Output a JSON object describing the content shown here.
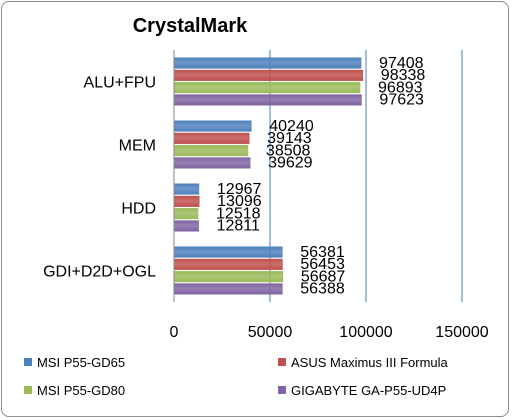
{
  "chart_data": {
    "type": "bar",
    "orientation": "horizontal",
    "title": "CrystalMark",
    "xlabel": "",
    "ylabel": "",
    "xlim": [
      0,
      150000
    ],
    "ticks": [
      "0",
      "50000",
      "100000",
      "150000"
    ],
    "tick_values": [
      0,
      50000,
      100000,
      150000
    ],
    "grid": true,
    "legend_position": "bottom",
    "categories": [
      "ALU+FPU",
      "MEM",
      "HDD",
      "GDI+D2D+OGL"
    ],
    "series": [
      {
        "name": "MSI P55-GD65",
        "color": "#4f81bd",
        "values": [
          97408,
          40240,
          12967,
          56381
        ]
      },
      {
        "name": "ASUS Maximus III Formula",
        "color": "#c0504d",
        "values": [
          98338,
          39143,
          13096,
          56453
        ]
      },
      {
        "name": "MSI P55-GD80",
        "color": "#9bbb59",
        "values": [
          96893,
          38508,
          12518,
          56687
        ]
      },
      {
        "name": "GIGABYTE GA-P55-UD4P",
        "color": "#8064a2",
        "values": [
          97623,
          39629,
          12811,
          56388
        ]
      }
    ]
  }
}
